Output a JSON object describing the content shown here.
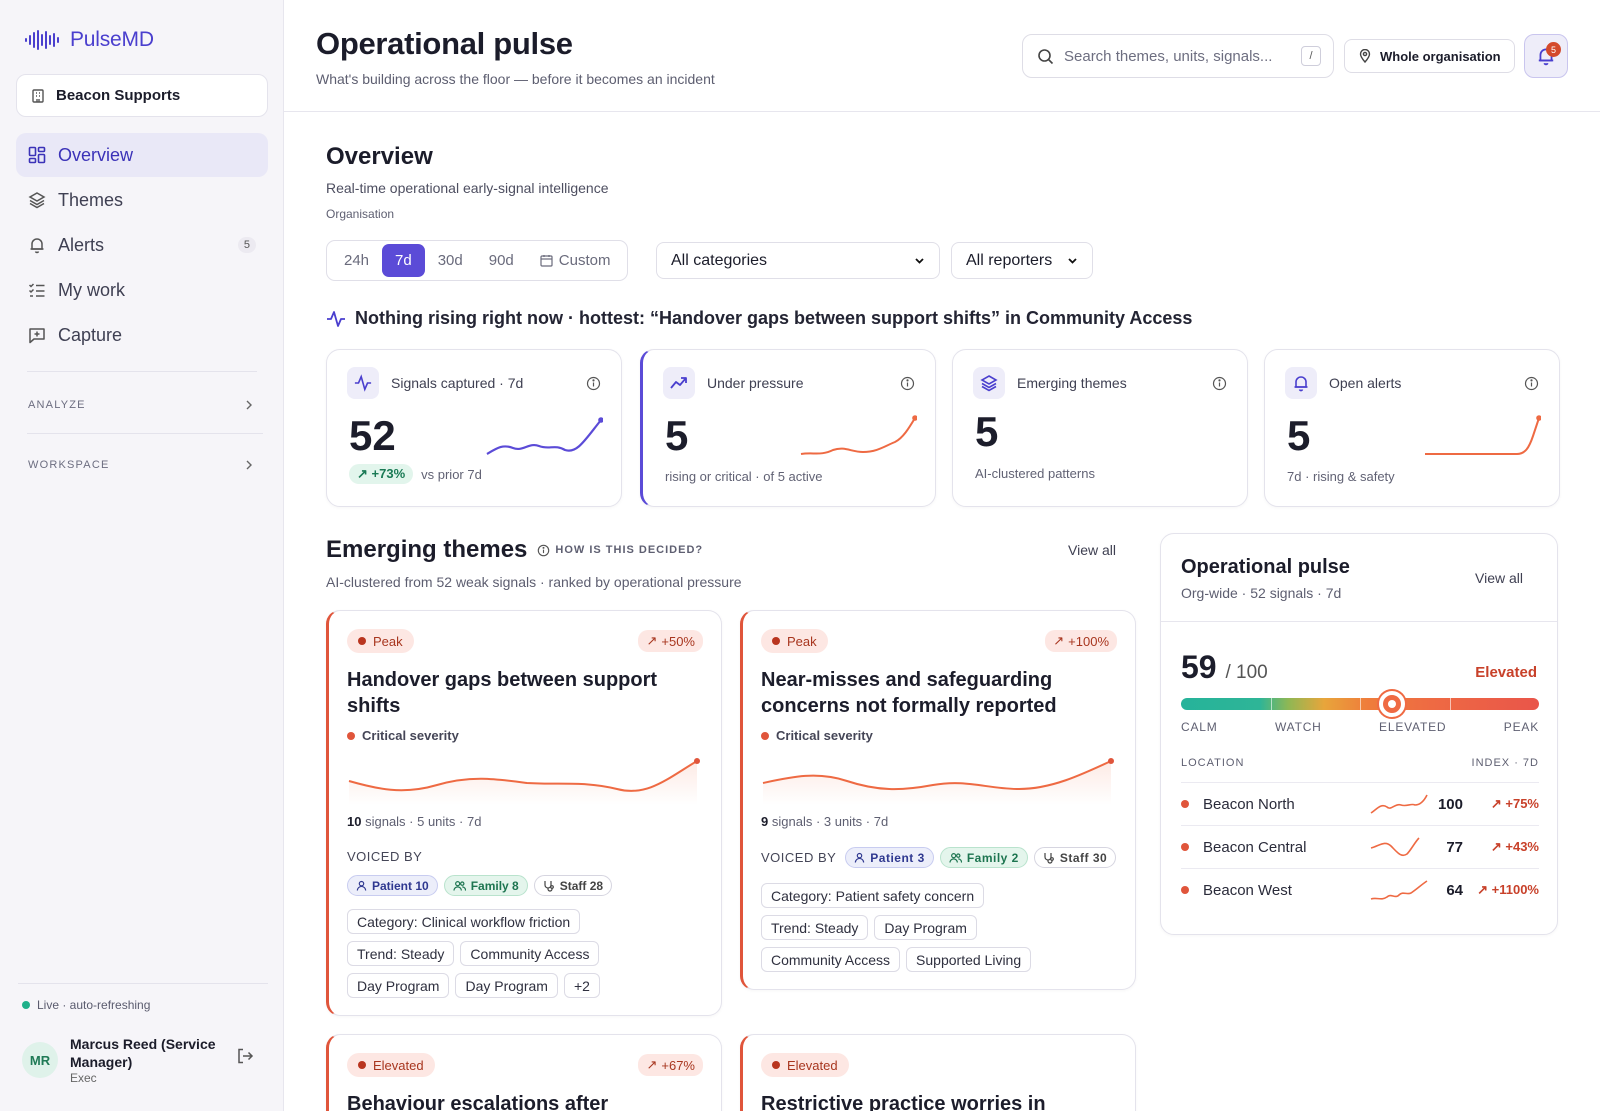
{
  "app": {
    "name": "PulseMD"
  },
  "sidebar": {
    "org": "Beacon Supports",
    "items": [
      {
        "label": "Overview",
        "icon": "grid-icon",
        "active": true
      },
      {
        "label": "Themes",
        "icon": "layers-icon"
      },
      {
        "label": "Alerts",
        "icon": "bell-icon",
        "badge": "5"
      },
      {
        "label": "My work",
        "icon": "checklist-icon"
      },
      {
        "label": "Capture",
        "icon": "capture-icon"
      }
    ],
    "sections": [
      "ANALYZE",
      "WORKSPACE"
    ],
    "live": "Live · auto-refreshing",
    "user": {
      "initials": "MR",
      "name": "Marcus Reed (Service Manager)",
      "role": "Exec"
    }
  },
  "header": {
    "title": "Operational pulse",
    "subtitle": "What's building across the floor — before it becomes an incident",
    "search_placeholder": "Search themes, units, signals...",
    "search_shortcut": "/",
    "scope": "Whole organisation",
    "notifications": "5"
  },
  "overview": {
    "title": "Overview",
    "subtitle": "Real-time operational early-signal intelligence",
    "scope_label": "Organisation",
    "ranges": [
      "24h",
      "7d",
      "30d",
      "90d",
      "Custom"
    ],
    "active_range": "7d",
    "category_filter": "All categories",
    "reporter_filter": "All reporters",
    "hottest": "Nothing rising right now · hottest: “Handover gaps between support shifts” in Community Access"
  },
  "stats": [
    {
      "label": "Signals captured · 7d",
      "value": "52",
      "delta": "+73%",
      "foot": "vs prior 7d",
      "spark_color": "#5b4bd7"
    },
    {
      "label": "Under pressure",
      "value": "5",
      "foot": "rising or critical · of 5 active",
      "spark_color": "#ee6a43"
    },
    {
      "label": "Emerging themes",
      "value": "5",
      "foot": "AI-clustered patterns"
    },
    {
      "label": "Open alerts",
      "value": "5",
      "foot": "7d · rising & safety",
      "spark_color": "#ee6a43"
    }
  ],
  "emerging": {
    "title": "Emerging themes",
    "how": "HOW IS THIS DECIDED?",
    "subtitle": "AI-clustered from 52 weak signals · ranked by operational pressure",
    "view_all": "View all",
    "cards": [
      {
        "level": "Peak",
        "delta": "+50%",
        "title": "Handover gaps between support shifts",
        "severity": "Critical severity",
        "signals": "10",
        "meta": "signals · 5 units · 7d",
        "voiced_label": "VOICED BY",
        "voices": {
          "patient": "Patient 10",
          "family": "Family 8",
          "staff": "Staff 28"
        },
        "tags": [
          "Category: Clinical workflow friction",
          "Trend: Steady",
          "Community Access",
          "Day Program",
          "Day Program",
          "+2"
        ]
      },
      {
        "level": "Peak",
        "delta": "+100%",
        "title": "Near-misses and safeguarding concerns not formally reported",
        "severity": "Critical severity",
        "signals": "9",
        "meta": "signals · 3 units · 7d",
        "voiced_label": "VOICED BY",
        "voices": {
          "patient": "Patient 3",
          "family": "Family 2",
          "staff": "Staff 30"
        },
        "tags": [
          "Category: Patient safety concern",
          "Trend: Steady",
          "Day Program",
          "Community Access",
          "Supported Living"
        ]
      },
      {
        "level": "Elevated",
        "delta": "+67%",
        "title": "Behaviour escalations after support-"
      },
      {
        "level": "Elevated",
        "title": "Restrictive practice worries in"
      }
    ]
  },
  "pulse": {
    "title": "Operational pulse",
    "subtitle": "Org-wide · 52 signals · 7d",
    "view_all": "View all",
    "score": "59",
    "score_max": "/ 100",
    "status": "Elevated",
    "gauge_value": 59,
    "gauge_labels": [
      "CALM",
      "WATCH",
      "ELEVATED",
      "PEAK"
    ],
    "loc_header": "LOCATION",
    "idx_header": "INDEX · 7D",
    "locations": [
      {
        "name": "Beacon North",
        "value": "100",
        "delta": "+75%"
      },
      {
        "name": "Beacon Central",
        "value": "77",
        "delta": "+43%"
      },
      {
        "name": "Beacon West",
        "value": "64",
        "delta": "+1100%"
      }
    ]
  }
}
